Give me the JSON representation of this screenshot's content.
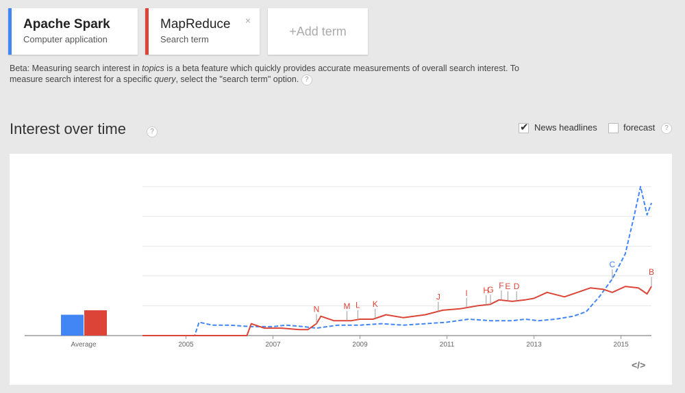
{
  "terms": [
    {
      "name": "Apache Spark",
      "subtitle": "Computer application",
      "color": "#4285f4"
    },
    {
      "name": "MapReduce",
      "subtitle": "Search term",
      "color": "#db4437"
    }
  ],
  "close_label": "×",
  "add_term_label": "+Add term",
  "beta": {
    "p1": "Beta: Measuring search interest in ",
    "topics": "topics",
    "p2": " is a beta feature which quickly provides accurate measurements of overall search interest. To measure search interest for a specific ",
    "query": "query",
    "p3": ", select the \"search term\" option."
  },
  "help_label": "?",
  "section_title": "Interest over time",
  "options": {
    "news": "News headlines",
    "news_checked": true,
    "forecast": "forecast",
    "forecast_checked": false
  },
  "embed_label": "</>",
  "chart_data": {
    "type": "line",
    "x_ticks": [
      "2005",
      "2007",
      "2009",
      "2011",
      "2013",
      "2015"
    ],
    "xlim": [
      2004,
      2015.7
    ],
    "ylim": [
      0,
      100
    ],
    "grid": true,
    "average": {
      "label": "Average",
      "values": [
        {
          "series": "Apache Spark",
          "value": 14
        },
        {
          "series": "MapReduce",
          "value": 17
        }
      ]
    },
    "series": [
      {
        "name": "Apache Spark",
        "color": "#4285f4",
        "dashed": true,
        "points": [
          [
            2004,
            0
          ],
          [
            2005.2,
            0
          ],
          [
            2005.3,
            9
          ],
          [
            2005.6,
            7
          ],
          [
            2006,
            7
          ],
          [
            2006.5,
            6
          ],
          [
            2007,
            6
          ],
          [
            2007.3,
            7
          ],
          [
            2007.7,
            6
          ],
          [
            2008,
            5
          ],
          [
            2008.5,
            7
          ],
          [
            2009,
            7
          ],
          [
            2009.5,
            8
          ],
          [
            2010,
            7
          ],
          [
            2010.5,
            8
          ],
          [
            2011,
            9
          ],
          [
            2011.5,
            11
          ],
          [
            2012,
            10
          ],
          [
            2012.5,
            10
          ],
          [
            2012.8,
            11
          ],
          [
            2013.1,
            10
          ],
          [
            2013.5,
            11
          ],
          [
            2013.9,
            13
          ],
          [
            2014.2,
            16
          ],
          [
            2014.5,
            26
          ],
          [
            2014.8,
            38
          ],
          [
            2015.1,
            55
          ],
          [
            2015.3,
            80
          ],
          [
            2015.45,
            100
          ],
          [
            2015.6,
            81
          ],
          [
            2015.7,
            89
          ]
        ]
      },
      {
        "name": "MapReduce",
        "color": "#db4437",
        "dashed": false,
        "points": [
          [
            2004,
            0
          ],
          [
            2006.4,
            0
          ],
          [
            2006.5,
            8
          ],
          [
            2006.8,
            5
          ],
          [
            2007.2,
            5
          ],
          [
            2007.6,
            4
          ],
          [
            2007.8,
            4
          ],
          [
            2008,
            8
          ],
          [
            2008.1,
            13
          ],
          [
            2008.4,
            10
          ],
          [
            2008.8,
            10
          ],
          [
            2009,
            11
          ],
          [
            2009.3,
            11
          ],
          [
            2009.6,
            14
          ],
          [
            2010,
            12
          ],
          [
            2010.5,
            14
          ],
          [
            2010.9,
            17
          ],
          [
            2011.3,
            18
          ],
          [
            2011.7,
            20
          ],
          [
            2012,
            21
          ],
          [
            2012.2,
            24
          ],
          [
            2012.5,
            23
          ],
          [
            2012.8,
            24
          ],
          [
            2013,
            25
          ],
          [
            2013.3,
            29
          ],
          [
            2013.7,
            26
          ],
          [
            2014,
            29
          ],
          [
            2014.3,
            32
          ],
          [
            2014.6,
            31
          ],
          [
            2014.8,
            29
          ],
          [
            2015.1,
            33
          ],
          [
            2015.4,
            32
          ],
          [
            2015.6,
            28
          ],
          [
            2015.7,
            33
          ]
        ]
      }
    ],
    "annotations": [
      {
        "label": "N",
        "x": 2008.0,
        "series": "MapReduce"
      },
      {
        "label": "M",
        "x": 2008.7,
        "series": "MapReduce"
      },
      {
        "label": "L",
        "x": 2008.95,
        "series": "MapReduce"
      },
      {
        "label": "K",
        "x": 2009.35,
        "series": "MapReduce"
      },
      {
        "label": "J",
        "x": 2010.8,
        "series": "MapReduce"
      },
      {
        "label": "I",
        "x": 2011.45,
        "series": "MapReduce"
      },
      {
        "label": "H",
        "x": 2011.9,
        "series": "MapReduce"
      },
      {
        "label": "G",
        "x": 2012.0,
        "series": "MapReduce"
      },
      {
        "label": "F",
        "x": 2012.25,
        "series": "MapReduce"
      },
      {
        "label": "E",
        "x": 2012.4,
        "series": "MapReduce"
      },
      {
        "label": "D",
        "x": 2012.6,
        "series": "MapReduce"
      },
      {
        "label": "C",
        "x": 2014.8,
        "series": "Apache Spark"
      },
      {
        "label": "B",
        "x": 2015.7,
        "series": "MapReduce"
      }
    ]
  }
}
